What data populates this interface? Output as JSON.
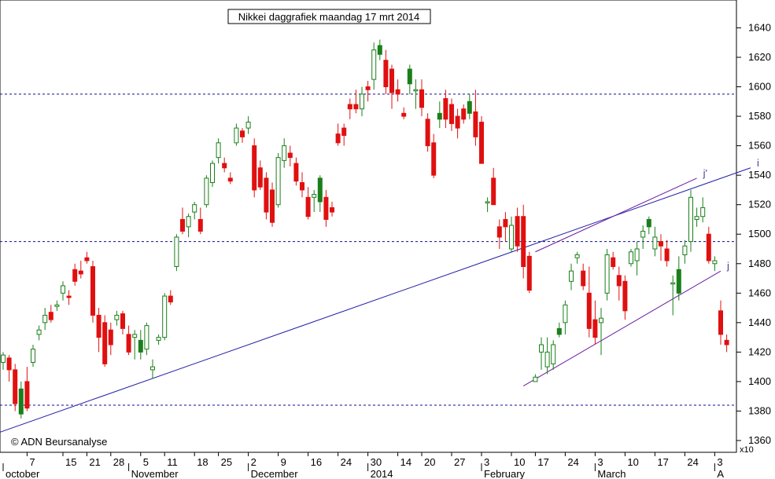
{
  "chart_data": {
    "type": "candlestick",
    "title": "Nikkei daggrafiek maandag 17 mrt 2014",
    "watermark": "© ADN Beursanalyse",
    "y_multiplier": "x10",
    "ylim": [
      1350,
      1655
    ],
    "y_ticks": [
      1360,
      1380,
      1400,
      1420,
      1440,
      1460,
      1480,
      1500,
      1520,
      1540,
      1560,
      1580,
      1600,
      1620,
      1640
    ],
    "x_day_ticks": [
      {
        "i": 4,
        "label": "7"
      },
      {
        "i": 10,
        "label": "15"
      },
      {
        "i": 14,
        "label": "21"
      },
      {
        "i": 18,
        "label": "28"
      },
      {
        "i": 23,
        "label": "5"
      },
      {
        "i": 27,
        "label": "11"
      },
      {
        "i": 32,
        "label": "18"
      },
      {
        "i": 36,
        "label": "25"
      },
      {
        "i": 41,
        "label": "2"
      },
      {
        "i": 46,
        "label": "9"
      },
      {
        "i": 51,
        "label": "16"
      },
      {
        "i": 56,
        "label": "24"
      },
      {
        "i": 61,
        "label": "30"
      },
      {
        "i": 66,
        "label": "14"
      },
      {
        "i": 70,
        "label": "20"
      },
      {
        "i": 75,
        "label": "27"
      },
      {
        "i": 80,
        "label": "3"
      },
      {
        "i": 85,
        "label": "10"
      },
      {
        "i": 89,
        "label": "17"
      },
      {
        "i": 94,
        "label": "24"
      },
      {
        "i": 99,
        "label": "3"
      },
      {
        "i": 104,
        "label": "10"
      },
      {
        "i": 109,
        "label": "17"
      },
      {
        "i": 114,
        "label": "24"
      },
      {
        "i": 119,
        "label": "3"
      }
    ],
    "x_month_ticks": [
      {
        "i": 0,
        "label": "october"
      },
      {
        "i": 21,
        "label": "November"
      },
      {
        "i": 41,
        "label": "December"
      },
      {
        "i": 61,
        "label": "2014"
      },
      {
        "i": 80,
        "label": "February"
      },
      {
        "i": 99,
        "label": "March"
      },
      {
        "i": 119,
        "label": "A"
      }
    ],
    "candles": [
      [
        1413,
        1420,
        1408,
        1418
      ],
      [
        1416,
        1418,
        1400,
        1408
      ],
      [
        1408,
        1412,
        1380,
        1385
      ],
      [
        1378,
        1400,
        1375,
        1395
      ],
      [
        1400,
        1410,
        1380,
        1382
      ],
      [
        1413,
        1425,
        1410,
        1422
      ],
      [
        1432,
        1438,
        1428,
        1435
      ],
      [
        1440,
        1450,
        1435,
        1445
      ],
      [
        1447,
        1452,
        1440,
        1442
      ],
      [
        1451,
        1455,
        1448,
        1452
      ],
      [
        1460,
        1468,
        1455,
        1465
      ],
      [
        1458,
        1462,
        1452,
        1457
      ],
      [
        1476,
        1480,
        1465,
        1468
      ],
      [
        1475,
        1482,
        1470,
        1473
      ],
      [
        1484,
        1488,
        1480,
        1482
      ],
      [
        1478,
        1482,
        1440,
        1445
      ],
      [
        1445,
        1450,
        1420,
        1430
      ],
      [
        1440,
        1445,
        1410,
        1412
      ],
      [
        1435,
        1440,
        1418,
        1425
      ],
      [
        1442,
        1448,
        1438,
        1445
      ],
      [
        1446,
        1448,
        1432,
        1436
      ],
      [
        1432,
        1438,
        1418,
        1420
      ],
      [
        1430,
        1435,
        1415,
        1432
      ],
      [
        1420,
        1435,
        1415,
        1428
      ],
      [
        1422,
        1440,
        1418,
        1438
      ],
      [
        1408,
        1415,
        1402,
        1410
      ],
      [
        1428,
        1432,
        1425,
        1430
      ],
      [
        1430,
        1460,
        1428,
        1458
      ],
      [
        1458,
        1462,
        1452,
        1454
      ],
      [
        1478,
        1500,
        1475,
        1498
      ],
      [
        1510,
        1518,
        1500,
        1502
      ],
      [
        1505,
        1514,
        1498,
        1512
      ],
      [
        1515,
        1522,
        1510,
        1520
      ],
      [
        1510,
        1518,
        1500,
        1502
      ],
      [
        1520,
        1540,
        1518,
        1538
      ],
      [
        1535,
        1550,
        1532,
        1548
      ],
      [
        1552,
        1565,
        1548,
        1562
      ],
      [
        1548,
        1552,
        1542,
        1545
      ],
      [
        1538,
        1542,
        1534,
        1536
      ],
      [
        1562,
        1575,
        1560,
        1572
      ],
      [
        1570,
        1572,
        1562,
        1566
      ],
      [
        1572,
        1580,
        1568,
        1576
      ],
      [
        1560,
        1565,
        1525,
        1530
      ],
      [
        1545,
        1550,
        1530,
        1532
      ],
      [
        1538,
        1542,
        1510,
        1515
      ],
      [
        1530,
        1535,
        1505,
        1508
      ],
      [
        1520,
        1555,
        1518,
        1552
      ],
      [
        1550,
        1565,
        1545,
        1560
      ],
      [
        1555,
        1560,
        1546,
        1552
      ],
      [
        1548,
        1552,
        1533,
        1536
      ],
      [
        1535,
        1542,
        1525,
        1530
      ],
      [
        1525,
        1532,
        1510,
        1512
      ],
      [
        1525,
        1530,
        1515,
        1527
      ],
      [
        1522,
        1540,
        1515,
        1538
      ],
      [
        1525,
        1530,
        1505,
        1510
      ],
      [
        1518,
        1522,
        1512,
        1515
      ],
      [
        1568,
        1575,
        1560,
        1562
      ],
      [
        1572,
        1575,
        1560,
        1567
      ],
      [
        1588,
        1592,
        1578,
        1585
      ],
      [
        1588,
        1598,
        1582,
        1585
      ],
      [
        1585,
        1600,
        1580,
        1595
      ],
      [
        1600,
        1604,
        1590,
        1598
      ],
      [
        1605,
        1630,
        1598,
        1625
      ],
      [
        1622,
        1632,
        1618,
        1628
      ],
      [
        1618,
        1625,
        1595,
        1600
      ],
      [
        1612,
        1615,
        1585,
        1596
      ],
      [
        1598,
        1605,
        1590,
        1595
      ],
      [
        1582,
        1586,
        1578,
        1580
      ],
      [
        1602,
        1615,
        1595,
        1612
      ],
      [
        1598,
        1605,
        1585,
        1598
      ],
      [
        1598,
        1605,
        1580,
        1586
      ],
      [
        1578,
        1582,
        1556,
        1560
      ],
      [
        1562,
        1568,
        1538,
        1540
      ],
      [
        1578,
        1590,
        1572,
        1582
      ],
      [
        1592,
        1598,
        1572,
        1578
      ],
      [
        1588,
        1592,
        1570,
        1575
      ],
      [
        1580,
        1585,
        1565,
        1572
      ],
      [
        1585,
        1588,
        1575,
        1578
      ],
      [
        1582,
        1595,
        1578,
        1590
      ],
      [
        1583,
        1598,
        1560,
        1566
      ],
      [
        1576,
        1580,
        1548,
        1548
      ],
      [
        1522,
        1525,
        1515,
        1522
      ],
      [
        1538,
        1545,
        1520,
        1520
      ],
      [
        1505,
        1510,
        1490,
        1498
      ],
      [
        1510,
        1515,
        1495,
        1505
      ],
      [
        1490,
        1512,
        1488,
        1506
      ],
      [
        1512,
        1518,
        1488,
        1492
      ],
      [
        1512,
        1520,
        1470,
        1478
      ],
      [
        1485,
        1488,
        1460,
        1462
      ],
      [
        1400,
        1405,
        1400,
        1403
      ],
      [
        1420,
        1430,
        1408,
        1425
      ],
      [
        1410,
        1430,
        1405,
        1420
      ],
      [
        1412,
        1428,
        1408,
        1425
      ],
      [
        1432,
        1440,
        1430,
        1436
      ],
      [
        1440,
        1455,
        1432,
        1452
      ],
      [
        1468,
        1480,
        1462,
        1475
      ],
      [
        1484,
        1488,
        1480,
        1486
      ],
      [
        1475,
        1480,
        1462,
        1465
      ],
      [
        1460,
        1478,
        1430,
        1436
      ],
      [
        1442,
        1455,
        1425,
        1430
      ],
      [
        1440,
        1450,
        1418,
        1443
      ],
      [
        1460,
        1490,
        1455,
        1486
      ],
      [
        1484,
        1488,
        1476,
        1478
      ],
      [
        1472,
        1478,
        1455,
        1465
      ],
      [
        1468,
        1472,
        1442,
        1448
      ],
      [
        1480,
        1490,
        1478,
        1488
      ],
      [
        1482,
        1495,
        1472,
        1490
      ],
      [
        1498,
        1506,
        1490,
        1502
      ],
      [
        1505,
        1512,
        1500,
        1510
      ],
      [
        1490,
        1505,
        1485,
        1498
      ],
      [
        1495,
        1500,
        1482,
        1492
      ],
      [
        1490,
        1496,
        1478,
        1482
      ],
      [
        1467,
        1472,
        1445,
        1467
      ],
      [
        1460,
        1485,
        1455,
        1476
      ],
      [
        1486,
        1496,
        1480,
        1492
      ],
      [
        1495,
        1530,
        1488,
        1525
      ],
      [
        1510,
        1518,
        1505,
        1512
      ],
      [
        1512,
        1525,
        1508,
        1518
      ],
      [
        1500,
        1505,
        1480,
        1482
      ],
      [
        1480,
        1485,
        1475,
        1482
      ],
      [
        1448,
        1455,
        1425,
        1432
      ],
      [
        1428,
        1432,
        1420,
        1425
      ]
    ],
    "hlines": [
      1595,
      1495,
      1384
    ],
    "trendlines": [
      {
        "label": "i",
        "color": "#1f1fa8",
        "from": [
          -1,
          1365
        ],
        "to": [
          125,
          1545
        ]
      },
      {
        "label": "j'",
        "color": "#6a1a9e",
        "from": [
          89,
          1488
        ],
        "to": [
          116,
          1538
        ]
      },
      {
        "label": "j",
        "color": "#6a1a9e",
        "from": [
          87,
          1397
        ],
        "to": [
          120,
          1475
        ]
      }
    ],
    "colors": {
      "up": "#1a7f1a",
      "down": "#e01010",
      "grid": "#0b0b8f",
      "up_fill": "#ffffff"
    }
  }
}
